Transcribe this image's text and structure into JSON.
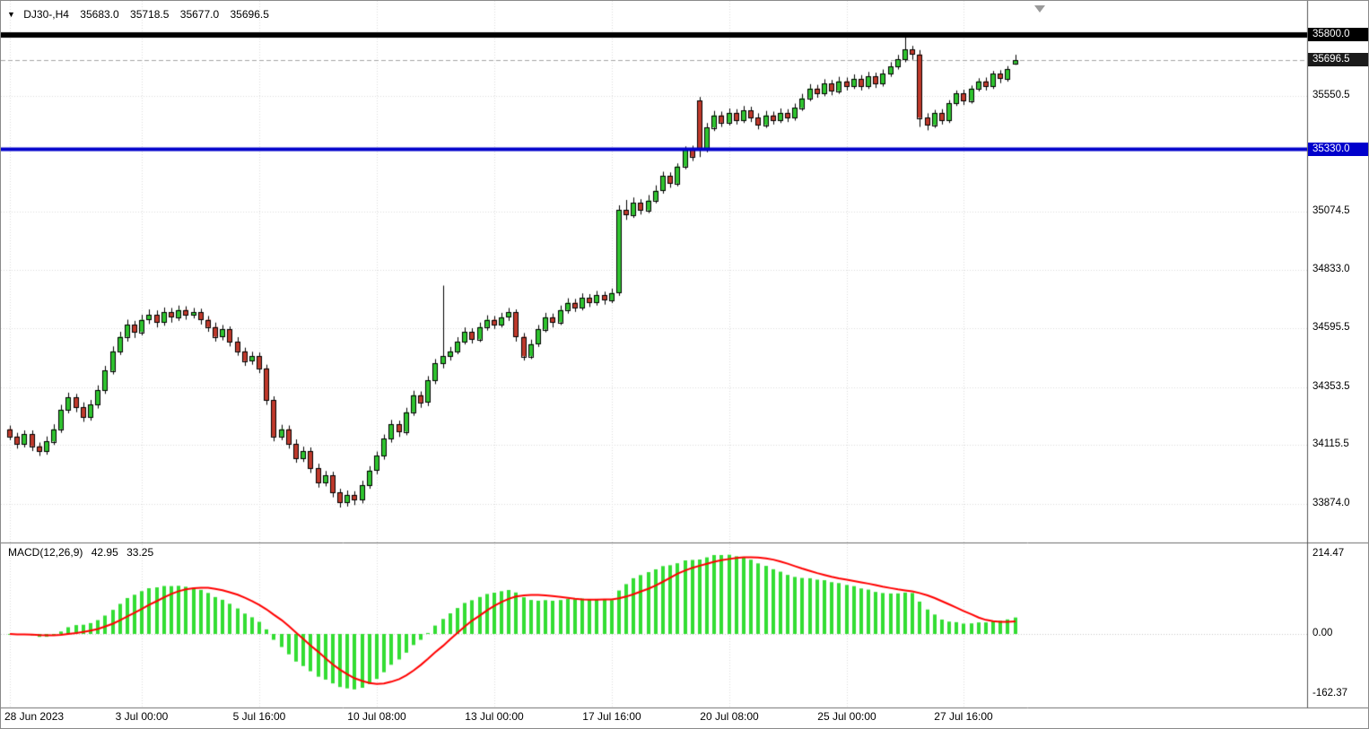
{
  "header": {
    "marker": "▼",
    "symbol_period": "DJ30-,H4",
    "open": "35683.0",
    "high": "35718.5",
    "low": "35677.0",
    "close": "35696.5"
  },
  "colors": {
    "bg": "#FFFFFF",
    "bull": "#2FC42F",
    "bear": "#C0392B",
    "wick": "#000000",
    "macd_bar": "#33DD33",
    "macd_signal": "#FF0000",
    "grid": "#DDDDDD",
    "separator": "#6E6E6E",
    "axis_line": "#555555",
    "text": "#000000",
    "level_black": "#000000",
    "level_blue": "#0000CC",
    "current_line": "#A6A6A6",
    "current_badge": "#1A1A1A"
  },
  "chart_data": {
    "type": "candlestick",
    "title": "DJ30-,H4",
    "symbol": "DJ30-",
    "timeframe": "H4",
    "axes": {
      "price_top": 35940,
      "price_bottom": 33718,
      "price_labels": [
        {
          "v": 35550.5,
          "t": "35550.5"
        },
        {
          "v": 35074.5,
          "t": "35074.5"
        },
        {
          "v": 34833.0,
          "t": "34833.0"
        },
        {
          "v": 34595.5,
          "t": "34595.5"
        },
        {
          "v": 34353.5,
          "t": "34353.5"
        },
        {
          "v": 34115.5,
          "t": "34115.5"
        },
        {
          "v": 33874.0,
          "t": "33874.0"
        }
      ]
    },
    "levels": [
      {
        "v": 35800.0,
        "t": "35800.0",
        "color": "#000000",
        "width": 6,
        "badge": "#000000",
        "dash": false
      },
      {
        "v": 35330.0,
        "t": "35330.0",
        "color": "#0000CC",
        "width": 4,
        "badge": "#0000CC",
        "dash": false
      },
      {
        "v": 35696.5,
        "t": "35696.5",
        "color": "#A6A6A6",
        "width": 1,
        "badge": "#1A1A1A",
        "dash": true
      }
    ],
    "time_labels": [
      {
        "i": 0,
        "t": "28 Jun 2023"
      },
      {
        "i": 18,
        "t": "3 Jul 00:00"
      },
      {
        "i": 34,
        "t": "5 Jul 16:00"
      },
      {
        "i": 50,
        "t": "10 Jul 08:00"
      },
      {
        "i": 66,
        "t": "13 Jul 00:00"
      },
      {
        "i": 82,
        "t": "17 Jul 16:00"
      },
      {
        "i": 98,
        "t": "20 Jul 08:00"
      },
      {
        "i": 114,
        "t": "25 Jul 00:00"
      },
      {
        "i": 130,
        "t": "27 Jul 16:00"
      }
    ],
    "indicator": {
      "name": "MACD(12,26,9)",
      "value_main": "42.95",
      "value_signal": "33.25",
      "params": [
        12,
        26,
        9
      ],
      "axis_labels": [
        {
          "v": 214.47,
          "t": "214.47"
        },
        {
          "v": 0,
          "t": "0.00"
        },
        {
          "v": -162.37,
          "t": "-162.37"
        }
      ]
    },
    "candles": [
      [
        34180,
        34195,
        34135,
        34150
      ],
      [
        34150,
        34165,
        34100,
        34120
      ],
      [
        34120,
        34175,
        34105,
        34160
      ],
      [
        34160,
        34175,
        34090,
        34110
      ],
      [
        34110,
        34125,
        34070,
        34090
      ],
      [
        34090,
        34150,
        34075,
        34130
      ],
      [
        34130,
        34200,
        34115,
        34180
      ],
      [
        34180,
        34280,
        34165,
        34260
      ],
      [
        34260,
        34330,
        34245,
        34310
      ],
      [
        34310,
        34325,
        34250,
        34270
      ],
      [
        34270,
        34290,
        34210,
        34230
      ],
      [
        34230,
        34300,
        34215,
        34280
      ],
      [
        34280,
        34360,
        34265,
        34340
      ],
      [
        34340,
        34440,
        34325,
        34420
      ],
      [
        34420,
        34520,
        34405,
        34500
      ],
      [
        34500,
        34580,
        34485,
        34560
      ],
      [
        34560,
        34630,
        34540,
        34610
      ],
      [
        34610,
        34625,
        34555,
        34580
      ],
      [
        34580,
        34650,
        34565,
        34630
      ],
      [
        34630,
        34672,
        34612,
        34650
      ],
      [
        34650,
        34668,
        34598,
        34620
      ],
      [
        34620,
        34680,
        34605,
        34660
      ],
      [
        34660,
        34678,
        34618,
        34640
      ],
      [
        34640,
        34688,
        34625,
        34670
      ],
      [
        34670,
        34685,
        34630,
        34650
      ],
      [
        34650,
        34678,
        34635,
        34660
      ],
      [
        34660,
        34675,
        34610,
        34630
      ],
      [
        34630,
        34645,
        34580,
        34600
      ],
      [
        34600,
        34618,
        34540,
        34560
      ],
      [
        34560,
        34608,
        34545,
        34590
      ],
      [
        34590,
        34602,
        34520,
        34540
      ],
      [
        34540,
        34558,
        34482,
        34500
      ],
      [
        34500,
        34515,
        34440,
        34460
      ],
      [
        34460,
        34498,
        34445,
        34480
      ],
      [
        34480,
        34495,
        34410,
        34430
      ],
      [
        34430,
        34445,
        34280,
        34300
      ],
      [
        34300,
        34315,
        34130,
        34150
      ],
      [
        34150,
        34198,
        34135,
        34180
      ],
      [
        34180,
        34195,
        34100,
        34120
      ],
      [
        34120,
        34138,
        34042,
        34060
      ],
      [
        34060,
        34108,
        34045,
        34090
      ],
      [
        34090,
        34105,
        34000,
        34020
      ],
      [
        34020,
        34038,
        33940,
        33960
      ],
      [
        33960,
        34008,
        33945,
        33990
      ],
      [
        33990,
        34005,
        33900,
        33920
      ],
      [
        33920,
        33935,
        33858,
        33880
      ],
      [
        33880,
        33928,
        33862,
        33910
      ],
      [
        33910,
        33925,
        33868,
        33890
      ],
      [
        33890,
        33968,
        33875,
        33950
      ],
      [
        33950,
        34028,
        33935,
        34010
      ],
      [
        34010,
        34088,
        33995,
        34070
      ],
      [
        34070,
        34158,
        34055,
        34140
      ],
      [
        34140,
        34218,
        34125,
        34200
      ],
      [
        34200,
        34215,
        34148,
        34170
      ],
      [
        34170,
        34268,
        34155,
        34250
      ],
      [
        34250,
        34338,
        34235,
        34320
      ],
      [
        34320,
        34335,
        34268,
        34290
      ],
      [
        34290,
        34398,
        34275,
        34380
      ],
      [
        34380,
        34468,
        34365,
        34450
      ],
      [
        34450,
        34770,
        34430,
        34480
      ],
      [
        34480,
        34518,
        34462,
        34500
      ],
      [
        34500,
        34558,
        34488,
        34540
      ],
      [
        34540,
        34598,
        34528,
        34580
      ],
      [
        34580,
        34595,
        34532,
        34550
      ],
      [
        34550,
        34618,
        34538,
        34600
      ],
      [
        34600,
        34648,
        34585,
        34630
      ],
      [
        34630,
        34645,
        34592,
        34610
      ],
      [
        34610,
        34658,
        34598,
        34640
      ],
      [
        34640,
        34678,
        34625,
        34660
      ],
      [
        34660,
        34672,
        34540,
        34560
      ],
      [
        34560,
        34575,
        34462,
        34480
      ],
      [
        34480,
        34548,
        34468,
        34530
      ],
      [
        34530,
        34608,
        34518,
        34590
      ],
      [
        34590,
        34658,
        34578,
        34640
      ],
      [
        34640,
        34655,
        34598,
        34620
      ],
      [
        34620,
        34688,
        34608,
        34670
      ],
      [
        34670,
        34718,
        34655,
        34700
      ],
      [
        34700,
        34715,
        34662,
        34680
      ],
      [
        34680,
        34738,
        34668,
        34720
      ],
      [
        34720,
        34735,
        34682,
        34700
      ],
      [
        34700,
        34748,
        34688,
        34730
      ],
      [
        34730,
        34745,
        34692,
        34710
      ],
      [
        34710,
        34758,
        34698,
        34740
      ],
      [
        34740,
        35100,
        34728,
        35080
      ],
      [
        35080,
        35122,
        35040,
        35060
      ],
      [
        35060,
        35132,
        35048,
        35110
      ],
      [
        35110,
        35125,
        35062,
        35080
      ],
      [
        35080,
        35142,
        35068,
        35120
      ],
      [
        35120,
        35182,
        35108,
        35160
      ],
      [
        35160,
        35238,
        35148,
        35220
      ],
      [
        35220,
        35235,
        35172,
        35190
      ],
      [
        35190,
        35272,
        35178,
        35260
      ],
      [
        35260,
        35342,
        35248,
        35330
      ],
      [
        35330,
        35345,
        35282,
        35300
      ],
      [
        35530,
        35545,
        35298,
        35330
      ],
      [
        35330,
        35438,
        35318,
        35420
      ],
      [
        35420,
        35488,
        35405,
        35470
      ],
      [
        35470,
        35485,
        35422,
        35440
      ],
      [
        35440,
        35498,
        35428,
        35480
      ],
      [
        35480,
        35495,
        35432,
        35450
      ],
      [
        35450,
        35508,
        35438,
        35490
      ],
      [
        35490,
        35505,
        35442,
        35460
      ],
      [
        35460,
        35478,
        35412,
        35430
      ],
      [
        35430,
        35488,
        35418,
        35470
      ],
      [
        35470,
        35485,
        35432,
        35450
      ],
      [
        35450,
        35498,
        35438,
        35480
      ],
      [
        35480,
        35495,
        35442,
        35460
      ],
      [
        35460,
        35518,
        35448,
        35500
      ],
      [
        35500,
        35558,
        35488,
        35540
      ],
      [
        35540,
        35598,
        35528,
        35580
      ],
      [
        35580,
        35595,
        35542,
        35560
      ],
      [
        35560,
        35618,
        35548,
        35600
      ],
      [
        35600,
        35615,
        35552,
        35570
      ],
      [
        35570,
        35628,
        35558,
        35610
      ],
      [
        35610,
        35625,
        35572,
        35590
      ],
      [
        35590,
        35638,
        35578,
        35620
      ],
      [
        35620,
        35635,
        35572,
        35590
      ],
      [
        35590,
        35648,
        35578,
        35630
      ],
      [
        35630,
        35645,
        35582,
        35600
      ],
      [
        35600,
        35658,
        35588,
        35640
      ],
      [
        35640,
        35688,
        35628,
        35670
      ],
      [
        35670,
        35718,
        35658,
        35700
      ],
      [
        35700,
        35792,
        35688,
        35740
      ],
      [
        35740,
        35755,
        35698,
        35720
      ],
      [
        35720,
        35738,
        35422,
        35460
      ],
      [
        35460,
        35478,
        35408,
        35430
      ],
      [
        35430,
        35492,
        35418,
        35480
      ],
      [
        35480,
        35495,
        35432,
        35450
      ],
      [
        35450,
        35532,
        35438,
        35520
      ],
      [
        35520,
        35572,
        35508,
        35560
      ],
      [
        35560,
        35575,
        35512,
        35530
      ],
      [
        35530,
        35592,
        35518,
        35580
      ],
      [
        35580,
        35622,
        35568,
        35610
      ],
      [
        35610,
        35625,
        35572,
        35590
      ],
      [
        35590,
        35652,
        35578,
        35640
      ],
      [
        35640,
        35655,
        35602,
        35620
      ],
      [
        35620,
        35672,
        35608,
        35660
      ],
      [
        35683,
        35718.5,
        35677,
        35696.5
      ]
    ]
  }
}
